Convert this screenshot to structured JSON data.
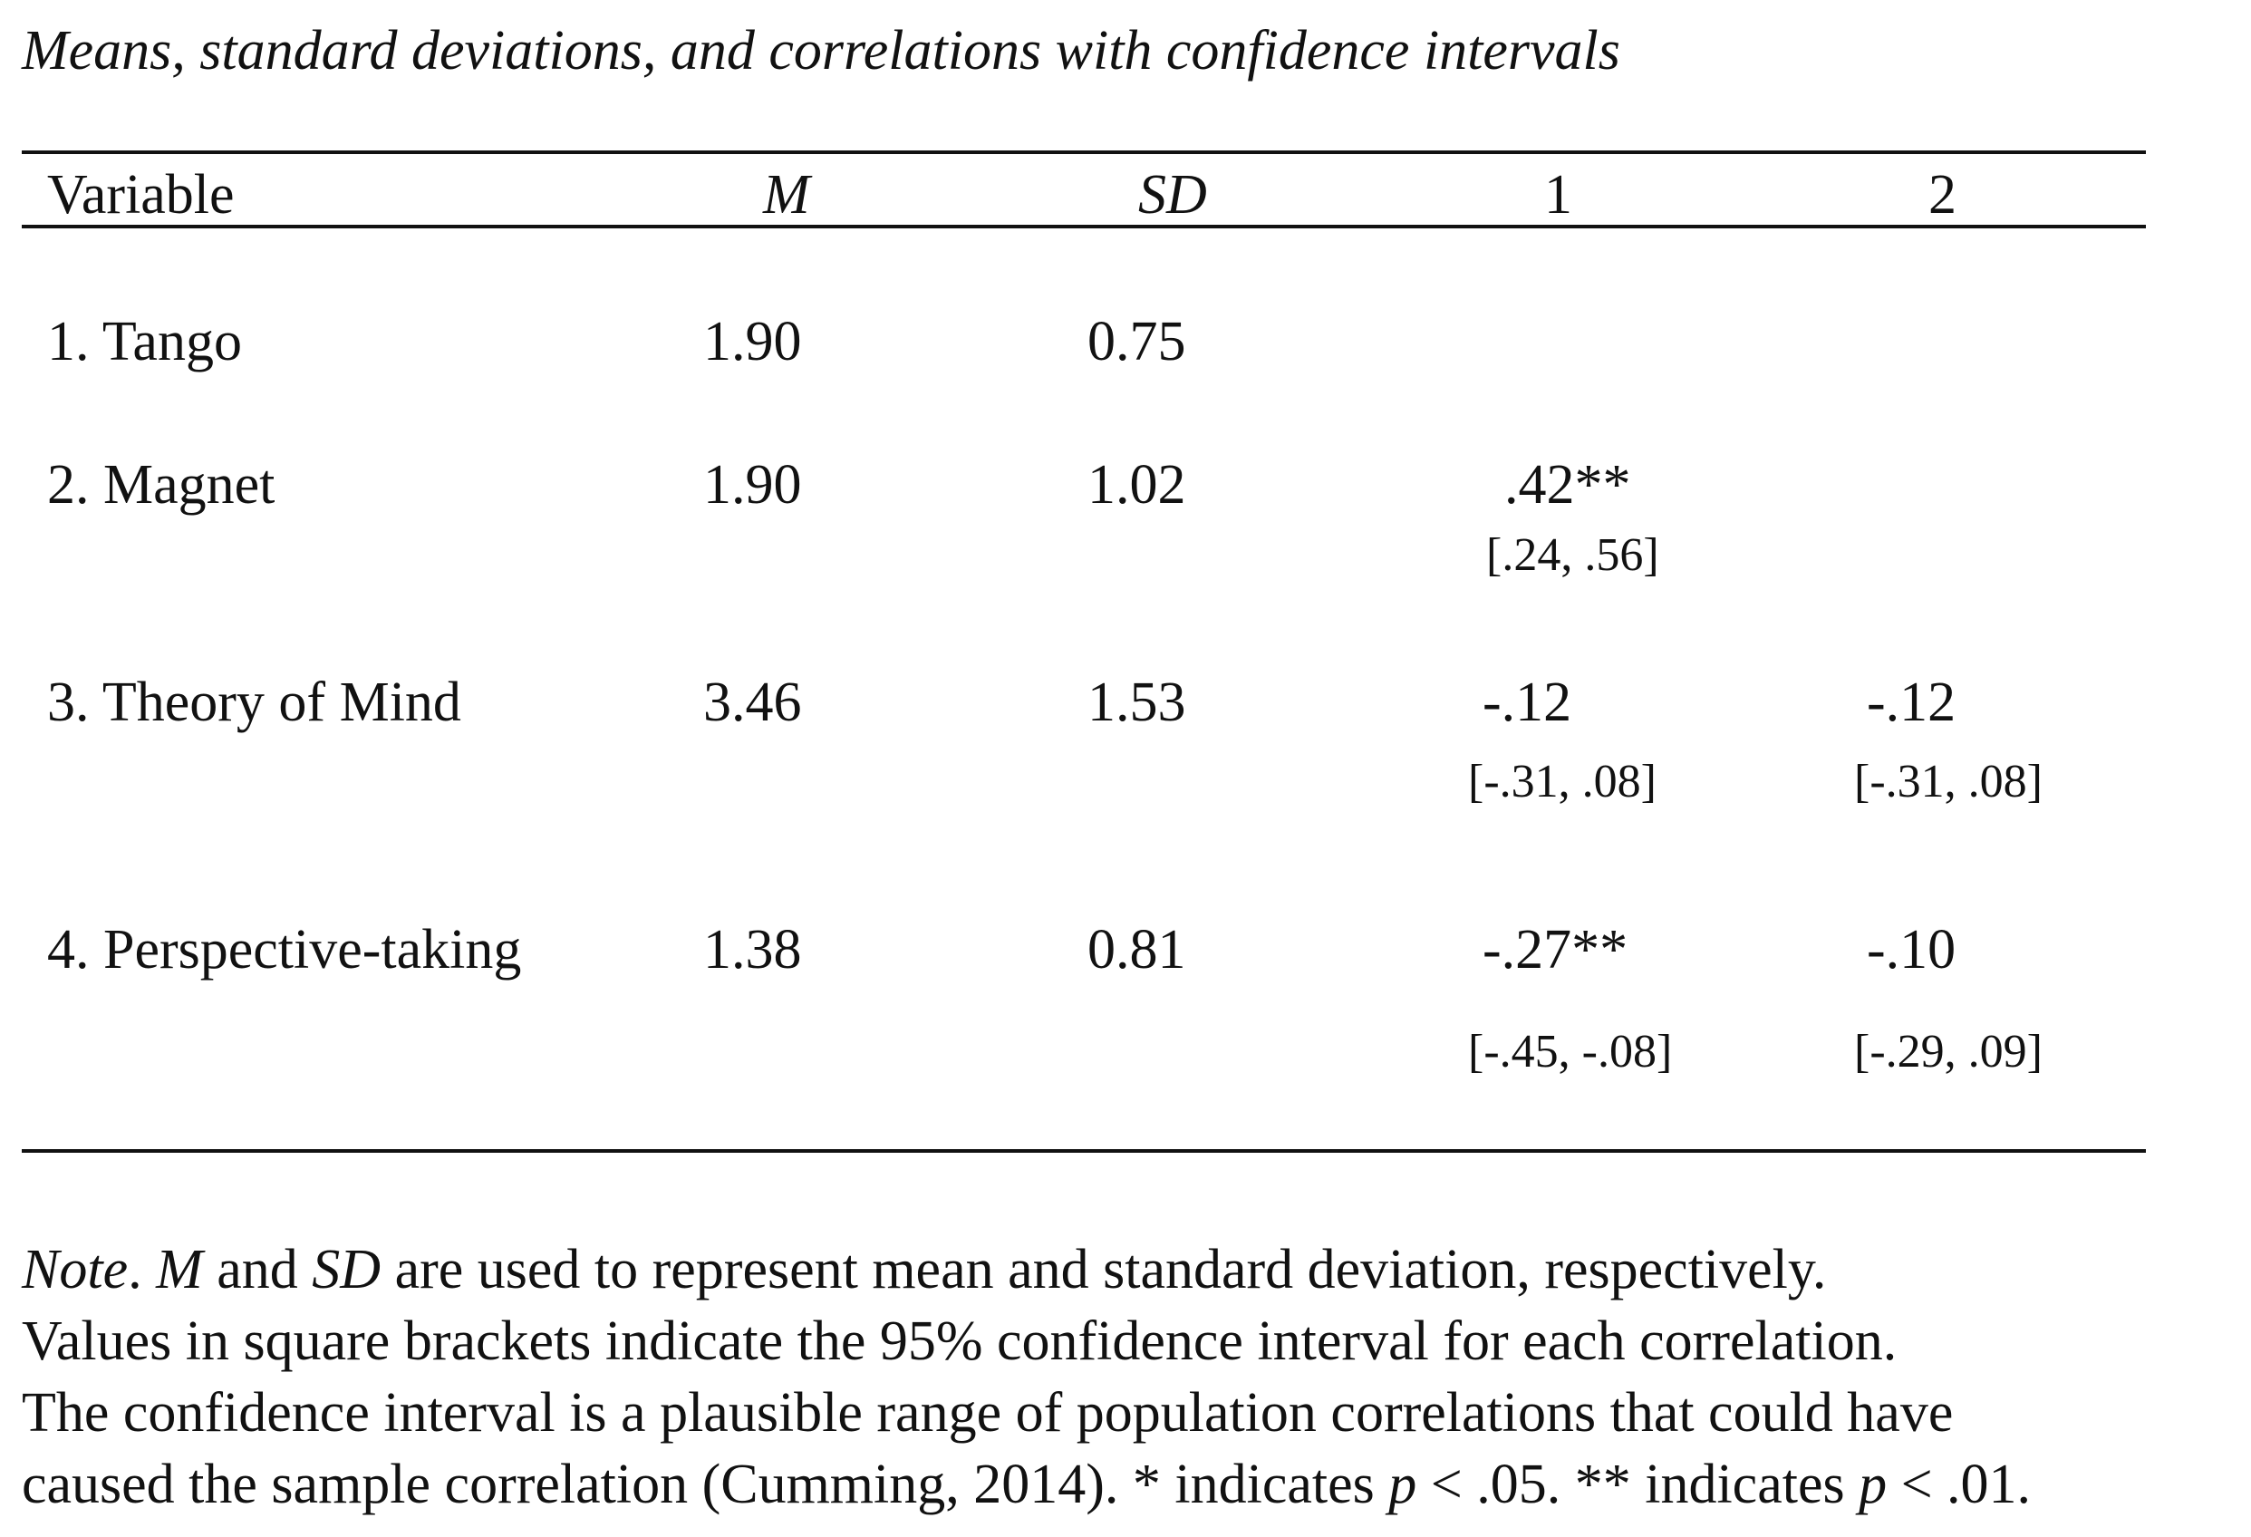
{
  "table": {
    "title": "Means, standard deviations, and correlations with confidence intervals",
    "headers": {
      "variable": "Variable",
      "mean": "M",
      "sd": "SD",
      "col1": "1",
      "col2": "2"
    },
    "rows": [
      {
        "label": "1. Tango",
        "mean": "1.90",
        "sd": "0.75"
      },
      {
        "label": "2. Magnet",
        "mean": "1.90",
        "sd": "1.02",
        "r1": ".42**",
        "ci1": "[.24, .56]"
      },
      {
        "label": "3. Theory of Mind",
        "mean": "3.46",
        "sd": "1.53",
        "r1": "-.12",
        "ci1": "[-.31, .08]",
        "r2": "-.12",
        "ci2": "[-.31, .08]"
      },
      {
        "label": "4. Perspective-taking",
        "mean": "1.38",
        "sd": "0.81",
        "r1": "-.27**",
        "ci1": "[-.45, -.08]",
        "r2": "-.10",
        "ci2": "[-.29, .09]"
      }
    ]
  },
  "note": {
    "note_label": "Note",
    "line1_a": ". ",
    "line1_m": "M",
    "line1_b": " and ",
    "line1_sd": "SD",
    "line1_c": " are used to represent mean and standard deviation, respectively.",
    "line2": "Values in square brackets indicate the 95% confidence interval for each correlation.",
    "line3": "The confidence interval is a plausible range of population correlations that could have",
    "line4_a": "caused the sample correlation (Cumming, 2014). * indicates ",
    "line4_p1": "p",
    "line4_b": " < .05. ** indicates ",
    "line4_p2": "p",
    "line4_c": " < .01."
  }
}
